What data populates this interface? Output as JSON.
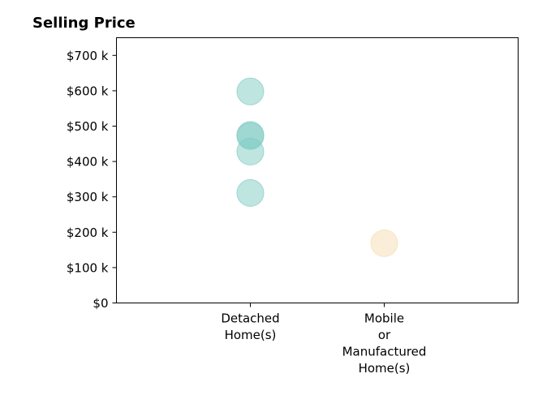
{
  "chart_data": {
    "type": "scatter",
    "title": "Selling Price",
    "xlabel": "",
    "ylabel": "",
    "categories": [
      [
        "Detached",
        "Home(s)"
      ],
      [
        "Mobile",
        "or",
        "Manufactured",
        "Home(s)"
      ]
    ],
    "xlim": [
      -1,
      2
    ],
    "ylim": [
      0,
      750000
    ],
    "yticks": [
      0,
      100000,
      200000,
      300000,
      400000,
      500000,
      600000,
      700000
    ],
    "ytick_labels": [
      "$0",
      "$100 k",
      "$200 k",
      "$300 k",
      "$400 k",
      "$500 k",
      "$600 k",
      "$700 k"
    ],
    "grid": false,
    "series": [
      {
        "color": "#80cbc4",
        "points": [
          {
            "category": 0,
            "y": 598000
          },
          {
            "category": 0,
            "y": 475000
          },
          {
            "category": 0,
            "y": 472000
          },
          {
            "category": 0,
            "y": 428000
          },
          {
            "category": 0,
            "y": 311000
          }
        ]
      },
      {
        "color": "#f5deb3",
        "points": [
          {
            "category": 1,
            "y": 169000
          }
        ]
      }
    ]
  }
}
